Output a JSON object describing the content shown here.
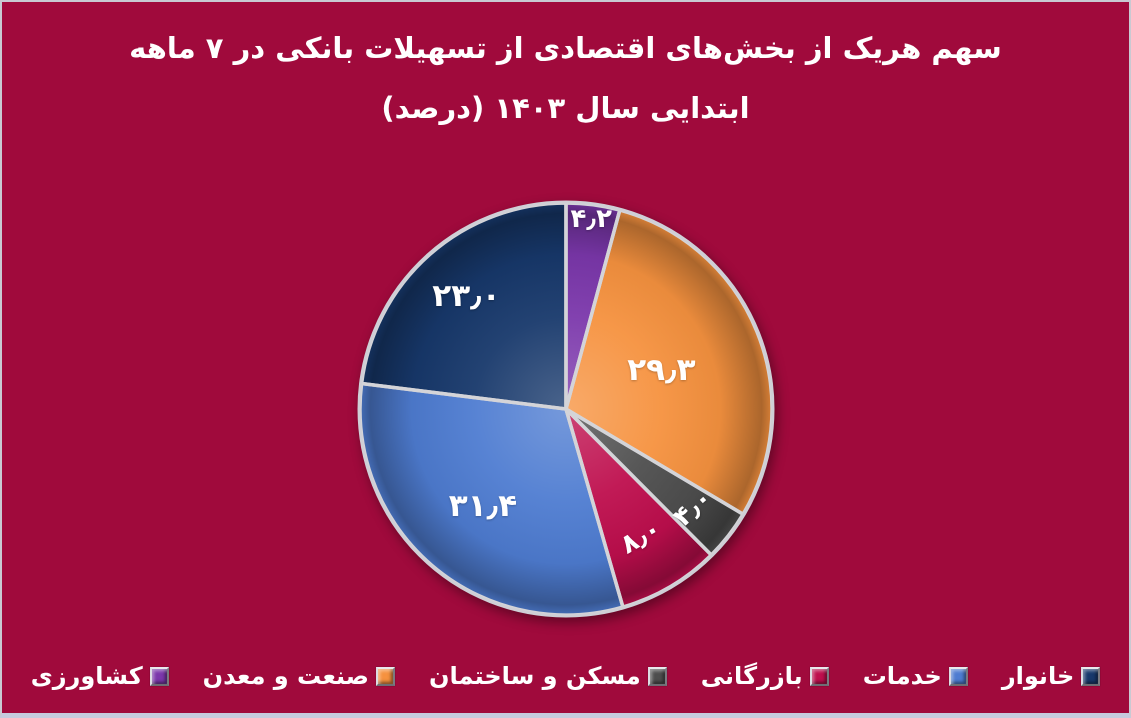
{
  "background_color": "#A00A3C",
  "frame_border_color": "#C9C9D2",
  "text_color": "#FFFFFF",
  "separator_color": "#D4D4D8",
  "title": {
    "line1": "سهم هریک از بخش‌های اقتصادی از تسهیلات بانکی در ۷ ماهه",
    "line2": "ابتدایی سال ۱۴۰۳ (درصد)"
  },
  "chart_data": {
    "type": "pie",
    "title": "سهم هریک از بخش‌های اقتصادی از تسهیلات بانکی در ۷ ماهه ابتدایی سال ۱۴۰۳ (درصد)",
    "unit": "درصد",
    "direction": "rtl-counterclockwise-from-top",
    "legend_position": "bottom",
    "slices": [
      {
        "label": "خانوار",
        "value": 23.0,
        "value_fa": "۲۳٫۰",
        "color": "#17386B"
      },
      {
        "label": "خدمات",
        "value": 31.4,
        "value_fa": "۳۱٫۴",
        "color": "#4E7CD1"
      },
      {
        "label": "بازرگانی",
        "value": 8.0,
        "value_fa": "۸٫۰",
        "color": "#BE0E4D"
      },
      {
        "label": "مسکن و ساختمان",
        "value": 4.0,
        "value_fa": "۴٫۰",
        "color": "#4E4E4E"
      },
      {
        "label": "صنعت و معدن",
        "value": 29.3,
        "value_fa": "۲۹٫۳",
        "color": "#F6923F"
      },
      {
        "label": "کشاورزی",
        "value": 4.2,
        "value_fa": "۴٫۲",
        "color": "#7B37AB"
      }
    ]
  }
}
